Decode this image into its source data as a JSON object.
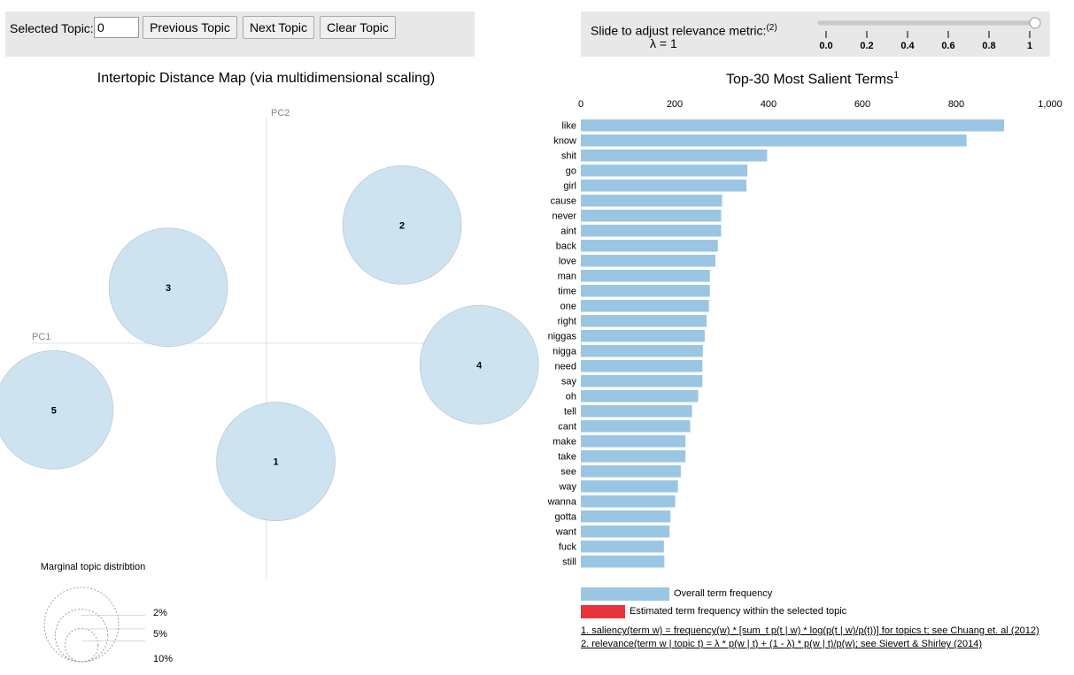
{
  "controls": {
    "selected_topic_label": "Selected Topic:",
    "selected_topic_value": "0",
    "prev_label": "Previous Topic",
    "next_label": "Next Topic",
    "clear_label": "Clear Topic",
    "slider_label": "Slide to adjust relevance metric:",
    "slider_footnote": "(2)",
    "lambda_text": "λ = 1",
    "slider_value": 1,
    "slider_ticks": [
      "0.0",
      "0.2",
      "0.4",
      "0.6",
      "0.8",
      "1"
    ]
  },
  "colors": {
    "bar": "#9ac6e4",
    "selected_bar": "#e8333a",
    "circle_fill": "#cce2f0",
    "circle_stroke": "#aabbd0"
  },
  "chart_data": [
    {
      "type": "scatter",
      "title": "Intertopic Distance Map (via multidimensional scaling)",
      "xlabel": "PC1",
      "ylabel": "PC2",
      "topics": [
        {
          "label": "1",
          "pc1": 0.04,
          "pc2": -0.55
        },
        {
          "label": "2",
          "pc1": 0.58,
          "pc2": 0.55
        },
        {
          "label": "3",
          "pc1": -0.42,
          "pc2": 0.26
        },
        {
          "label": "4",
          "pc1": 0.91,
          "pc2": -0.1
        },
        {
          "label": "5",
          "pc1": -0.91,
          "pc2": -0.31
        }
      ],
      "legend": {
        "title": "Marginal topic distribtion",
        "items": [
          "2%",
          "5%",
          "10%"
        ],
        "percents": [
          2,
          5,
          10
        ]
      }
    },
    {
      "type": "bar",
      "orientation": "horizontal",
      "title": "Top-30 Most Salient Terms",
      "title_footnote": "1",
      "xlim": [
        0,
        1000
      ],
      "ticks": [
        0,
        200,
        400,
        600,
        800,
        1000
      ],
      "tick_labels": [
        "0",
        "200",
        "400",
        "600",
        "800",
        "1,000"
      ],
      "categories": [
        "like",
        "know",
        "shit",
        "go",
        "girl",
        "cause",
        "never",
        "aint",
        "back",
        "love",
        "man",
        "time",
        "one",
        "right",
        "niggas",
        "nigga",
        "need",
        "say",
        "oh",
        "tell",
        "cant",
        "make",
        "take",
        "see",
        "way",
        "wanna",
        "gotta",
        "want",
        "fuck",
        "still"
      ],
      "values": [
        902,
        822,
        397,
        355,
        353,
        301,
        299,
        299,
        292,
        287,
        275,
        275,
        273,
        268,
        264,
        260,
        259,
        259,
        250,
        237,
        233,
        223,
        223,
        213,
        207,
        201,
        191,
        189,
        177,
        178
      ],
      "legend": {
        "overall": "Overall term frequency",
        "selected": "Estimated term frequency within the selected topic"
      }
    }
  ],
  "footnotes": [
    "1. saliency(term w) = frequency(w) * [sum_t p(t | w) * log(p(t | w)/p(t))] for topics t; see Chuang et. al (2012)",
    "2. relevance(term w | topic t) = λ * p(w | t) + (1 - λ) * p(w | t)/p(w); see Sievert & Shirley (2014)"
  ]
}
